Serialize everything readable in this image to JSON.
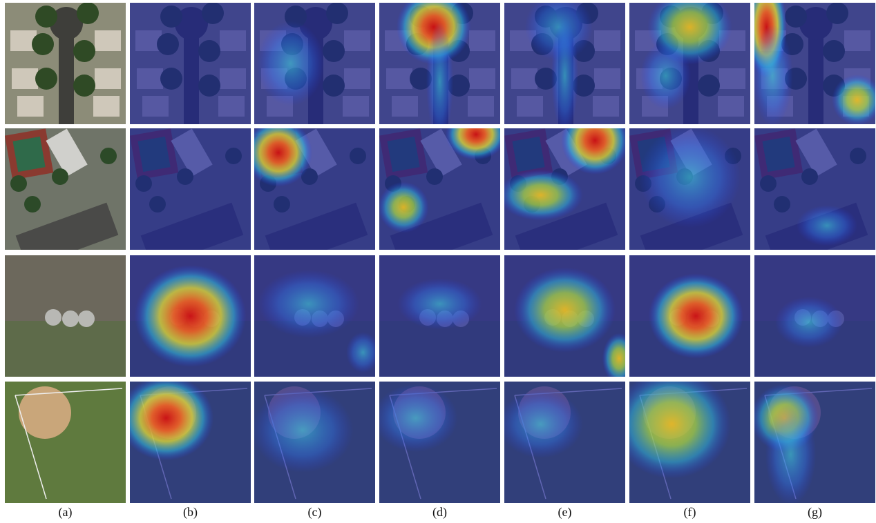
{
  "labels": [
    "(a)",
    "(b)",
    "(c)",
    "(d)",
    "(e)",
    "(f)",
    "(g)"
  ]
}
